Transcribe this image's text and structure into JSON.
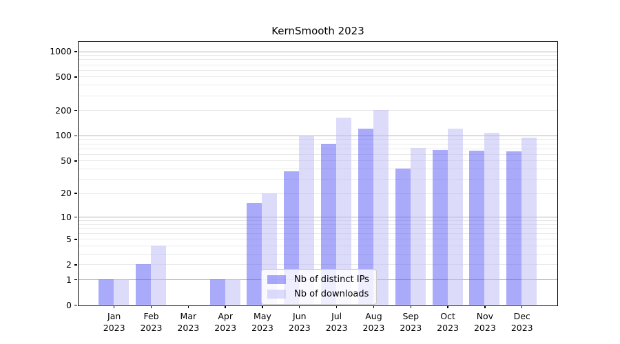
{
  "chart_data": {
    "type": "bar",
    "title": "KernSmooth 2023",
    "categories": [
      "Jan",
      "Feb",
      "Mar",
      "Apr",
      "May",
      "Jun",
      "Jul",
      "Aug",
      "Sep",
      "Oct",
      "Nov",
      "Dec"
    ],
    "x_tick_year": "2023",
    "series": [
      {
        "name": "Nb of distinct IPs",
        "key": "distinct-ips",
        "color": "rgba(85,85,245,0.5)",
        "values": [
          1,
          2,
          0,
          1,
          15,
          37,
          80,
          120,
          40,
          67,
          66,
          65
        ]
      },
      {
        "name": "Nb of downloads",
        "key": "downloads",
        "color": "rgba(185,185,245,0.5)",
        "values": [
          1,
          4,
          0,
          1,
          20,
          98,
          163,
          200,
          71,
          120,
          108,
          94
        ]
      }
    ],
    "y_scale": "log1p",
    "ylim": [
      0,
      1290
    ],
    "y_tick_labels": [
      "0",
      "1",
      "2",
      "5",
      "10",
      "20",
      "50",
      "100",
      "200",
      "500",
      "1000"
    ],
    "grid": {
      "major_values": [
        1,
        10,
        100,
        1000
      ],
      "major_color": "#b3b3b3",
      "minor_color": "#e9e9e9"
    },
    "legend": {
      "position": "lower center"
    }
  }
}
